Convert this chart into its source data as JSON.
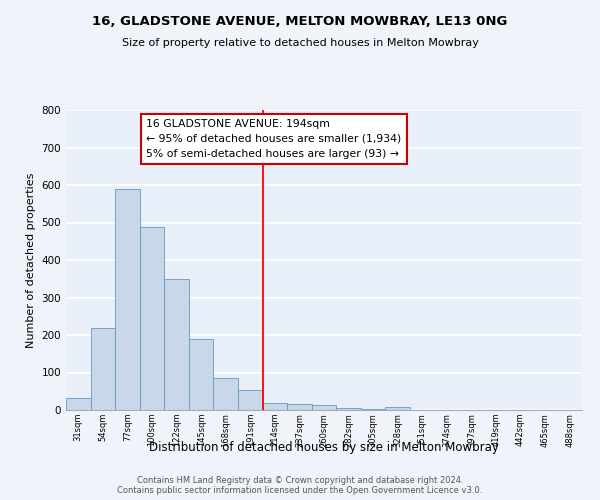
{
  "title": "16, GLADSTONE AVENUE, MELTON MOWBRAY, LE13 0NG",
  "subtitle": "Size of property relative to detached houses in Melton Mowbray",
  "xlabel": "Distribution of detached houses by size in Melton Mowbray",
  "ylabel": "Number of detached properties",
  "bar_labels": [
    "31sqm",
    "54sqm",
    "77sqm",
    "100sqm",
    "122sqm",
    "145sqm",
    "168sqm",
    "191sqm",
    "214sqm",
    "237sqm",
    "260sqm",
    "282sqm",
    "305sqm",
    "328sqm",
    "351sqm",
    "374sqm",
    "397sqm",
    "419sqm",
    "442sqm",
    "465sqm",
    "488sqm"
  ],
  "bar_values": [
    33,
    218,
    590,
    488,
    350,
    190,
    85,
    53,
    20,
    17,
    14,
    6,
    2,
    9,
    0,
    0,
    0,
    0,
    0,
    0,
    0
  ],
  "bar_color": "#c8d8ea",
  "bar_edge_color": "#6699bb",
  "vline_color": "red",
  "vline_index": 8,
  "annotation_title": "16 GLADSTONE AVENUE: 194sqm",
  "annotation_line1": "← 95% of detached houses are smaller (1,934)",
  "annotation_line2": "5% of semi-detached houses are larger (93) →",
  "annotation_box_facecolor": "#ffffff",
  "annotation_box_edgecolor": "#cc0000",
  "ylim": [
    0,
    800
  ],
  "yticks": [
    0,
    100,
    200,
    300,
    400,
    500,
    600,
    700,
    800
  ],
  "fig_facecolor": "#f0f4fa",
  "plot_facecolor": "#e8eff8",
  "grid_color": "#ffffff",
  "footer_line1": "Contains HM Land Registry data © Crown copyright and database right 2024.",
  "footer_line2": "Contains public sector information licensed under the Open Government Licence v3.0."
}
